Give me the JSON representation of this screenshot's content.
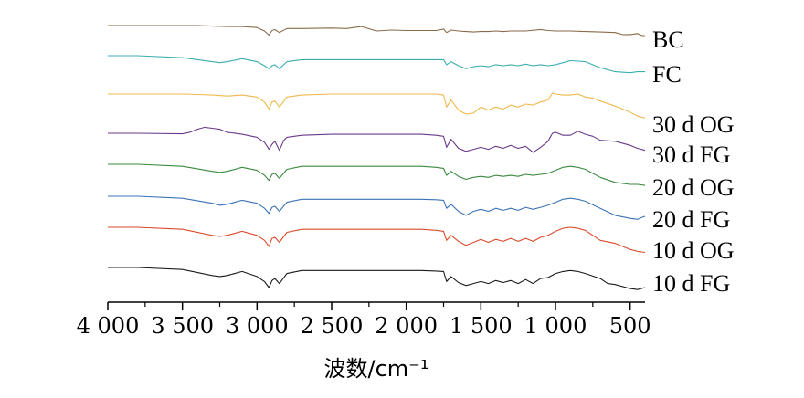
{
  "chart_data": {
    "type": "line",
    "title": "",
    "xlabel": "波数/cm⁻¹",
    "ylabel": "",
    "xlim": [
      4000,
      400
    ],
    "x_reversed": true,
    "x_ticks": [
      4000,
      3500,
      3000,
      2500,
      2000,
      1500,
      1000,
      500
    ],
    "x_tick_labels": [
      "4 000",
      "3 500",
      "3 000",
      "2 500",
      "2 000",
      "1 500",
      "1 000",
      "500"
    ],
    "y_axis_visible": false,
    "grid": false,
    "legend": "series labels at right end of each curve",
    "series": [
      {
        "name": "BC",
        "color": "#8B6A4A",
        "x": [
          4000,
          3800,
          3500,
          3400,
          3300,
          3200,
          3100,
          3000,
          2950,
          2920,
          2900,
          2880,
          2850,
          2800,
          2700,
          2500,
          2400,
          2350,
          2300,
          2200,
          2100,
          2000,
          1900,
          1800,
          1750,
          1730,
          1700,
          1650,
          1600,
          1550,
          1500,
          1450,
          1400,
          1350,
          1300,
          1200,
          1100,
          1050,
          1000,
          900,
          800,
          700,
          600,
          550,
          500,
          450,
          420,
          400
        ],
        "y": [
          0.0,
          0.0,
          0.0,
          0.0,
          -0.05,
          -0.1,
          -0.1,
          -0.2,
          -0.55,
          -0.95,
          -0.5,
          -0.4,
          -0.7,
          -0.3,
          -0.3,
          -0.25,
          -0.3,
          -0.2,
          -0.1,
          -0.55,
          -0.45,
          -0.5,
          -0.5,
          -0.5,
          -0.35,
          -0.7,
          -0.45,
          -0.55,
          -0.6,
          -0.65,
          -0.6,
          -0.6,
          -0.55,
          -0.6,
          -0.55,
          -0.55,
          -0.4,
          -0.5,
          -0.55,
          -0.55,
          -0.6,
          -0.65,
          -0.7,
          -0.9,
          -0.9,
          -0.8,
          -1.0,
          -1.0
        ]
      },
      {
        "name": "FC",
        "color": "#3BAEB0",
        "x": [
          4000,
          3800,
          3500,
          3300,
          3250,
          3200,
          3100,
          3000,
          2950,
          2920,
          2900,
          2880,
          2850,
          2800,
          2700,
          2500,
          2300,
          2100,
          1900,
          1800,
          1750,
          1730,
          1700,
          1650,
          1600,
          1550,
          1500,
          1450,
          1400,
          1350,
          1300,
          1250,
          1200,
          1150,
          1100,
          1050,
          1000,
          950,
          900,
          850,
          800,
          700,
          600,
          500,
          450,
          400
        ],
        "y": [
          0.0,
          0.0,
          -0.2,
          -0.6,
          -0.7,
          -0.6,
          -0.3,
          -0.6,
          -1.0,
          -1.3,
          -1.0,
          -0.9,
          -1.3,
          -0.6,
          -0.4,
          -0.4,
          -0.4,
          -0.4,
          -0.4,
          -0.4,
          -0.4,
          -0.9,
          -0.6,
          -1.0,
          -1.3,
          -1.1,
          -1.0,
          -1.1,
          -0.9,
          -1.0,
          -0.9,
          -1.0,
          -0.85,
          -1.0,
          -0.9,
          -1.0,
          -0.9,
          -0.7,
          -0.5,
          -0.55,
          -0.6,
          -1.2,
          -1.6,
          -1.7,
          -1.6,
          -1.6
        ]
      },
      {
        "name": "30 d OG",
        "color": "#F0B84C",
        "x": [
          4000,
          3800,
          3500,
          3400,
          3300,
          3200,
          3100,
          3000,
          2950,
          2920,
          2900,
          2880,
          2850,
          2800,
          2700,
          2500,
          2300,
          2100,
          1900,
          1800,
          1750,
          1730,
          1700,
          1650,
          1600,
          1550,
          1500,
          1450,
          1400,
          1350,
          1300,
          1250,
          1200,
          1150,
          1100,
          1050,
          1020,
          1000,
          950,
          900,
          850,
          800,
          750,
          700,
          600,
          500,
          450,
          400
        ],
        "y": [
          0.0,
          0.0,
          0.0,
          -0.05,
          -0.1,
          -0.2,
          -0.1,
          -0.3,
          -0.8,
          -1.5,
          -0.8,
          -0.7,
          -1.3,
          -0.3,
          -0.1,
          0.0,
          0.0,
          0.0,
          0.0,
          0.0,
          -0.1,
          -1.3,
          -0.6,
          -1.6,
          -2.0,
          -1.9,
          -1.3,
          -1.6,
          -1.3,
          -1.5,
          -1.1,
          -1.3,
          -1.0,
          -1.1,
          -0.8,
          -0.6,
          0.1,
          0.0,
          -0.1,
          -0.1,
          0.0,
          -0.3,
          -0.4,
          -0.7,
          -1.2,
          -1.8,
          -2.2,
          -2.4
        ]
      },
      {
        "name": "30 d FG",
        "color": "#6A3A8A",
        "x": [
          4000,
          3800,
          3500,
          3450,
          3400,
          3350,
          3300,
          3250,
          3200,
          3100,
          3000,
          2950,
          2920,
          2900,
          2880,
          2850,
          2820,
          2800,
          2700,
          2500,
          2300,
          2100,
          1900,
          1800,
          1750,
          1730,
          1700,
          1650,
          1600,
          1550,
          1500,
          1450,
          1400,
          1350,
          1300,
          1250,
          1200,
          1150,
          1100,
          1050,
          1020,
          1000,
          950,
          900,
          850,
          800,
          750,
          700,
          600,
          500,
          450,
          400
        ],
        "y": [
          0.0,
          0.0,
          -0.05,
          0.1,
          0.4,
          0.6,
          0.5,
          0.4,
          0.1,
          -0.1,
          -0.4,
          -0.9,
          -1.6,
          -1.1,
          -0.8,
          -1.7,
          -0.7,
          -0.4,
          -0.2,
          -0.1,
          -0.1,
          -0.1,
          -0.1,
          -0.2,
          -0.3,
          -1.4,
          -0.6,
          -1.5,
          -1.8,
          -1.6,
          -1.4,
          -1.6,
          -1.3,
          -1.5,
          -1.2,
          -1.5,
          -1.3,
          -1.9,
          -1.4,
          -0.8,
          0.0,
          0.1,
          -0.2,
          -0.2,
          0.2,
          -0.1,
          -0.3,
          -0.7,
          -0.8,
          -1.2,
          -1.5,
          -1.7
        ]
      },
      {
        "name": "20 d OG",
        "color": "#3A8A3E",
        "x": [
          4000,
          3800,
          3500,
          3300,
          3250,
          3200,
          3100,
          3000,
          2950,
          2920,
          2900,
          2880,
          2850,
          2800,
          2700,
          2500,
          2300,
          2100,
          1900,
          1800,
          1750,
          1730,
          1700,
          1650,
          1600,
          1550,
          1500,
          1450,
          1400,
          1350,
          1300,
          1250,
          1200,
          1150,
          1100,
          1050,
          1000,
          950,
          900,
          850,
          800,
          700,
          600,
          500,
          450,
          400
        ],
        "y": [
          0.0,
          0.0,
          -0.2,
          -0.7,
          -0.8,
          -0.7,
          -0.3,
          -0.6,
          -1.1,
          -1.6,
          -1.0,
          -0.9,
          -1.4,
          -0.5,
          -0.2,
          -0.2,
          -0.2,
          -0.2,
          -0.2,
          -0.3,
          -0.4,
          -1.1,
          -0.7,
          -1.2,
          -1.5,
          -1.3,
          -1.2,
          -1.3,
          -1.1,
          -1.2,
          -1.1,
          -1.2,
          -1.0,
          -1.1,
          -1.0,
          -0.9,
          -0.6,
          -0.3,
          -0.2,
          -0.3,
          -0.5,
          -1.3,
          -1.8,
          -2.0,
          -2.0,
          -2.1
        ]
      },
      {
        "name": "20 d FG",
        "color": "#3C73B5",
        "x": [
          4000,
          3800,
          3500,
          3300,
          3250,
          3200,
          3100,
          3000,
          2950,
          2920,
          2900,
          2880,
          2850,
          2800,
          2700,
          2500,
          2300,
          2100,
          1900,
          1800,
          1750,
          1730,
          1700,
          1650,
          1600,
          1550,
          1500,
          1450,
          1400,
          1350,
          1300,
          1250,
          1200,
          1150,
          1100,
          1050,
          1000,
          950,
          900,
          850,
          800,
          700,
          600,
          500,
          450,
          420,
          400
        ],
        "y": [
          0.0,
          0.0,
          -0.2,
          -0.7,
          -0.9,
          -0.8,
          -0.4,
          -0.7,
          -1.2,
          -1.7,
          -1.1,
          -1.0,
          -1.5,
          -0.6,
          -0.3,
          -0.3,
          -0.3,
          -0.3,
          -0.3,
          -0.35,
          -0.4,
          -1.2,
          -0.8,
          -1.5,
          -1.9,
          -1.5,
          -1.3,
          -1.5,
          -1.2,
          -1.4,
          -1.2,
          -1.4,
          -1.1,
          -1.3,
          -1.1,
          -0.9,
          -0.6,
          -0.3,
          -0.2,
          -0.3,
          -0.5,
          -1.2,
          -1.9,
          -2.2,
          -2.3,
          -2.1,
          -2.0
        ]
      },
      {
        "name": "10 d OG",
        "color": "#D94A2A",
        "x": [
          4000,
          3800,
          3500,
          3300,
          3250,
          3200,
          3100,
          3000,
          2950,
          2920,
          2900,
          2880,
          2850,
          2800,
          2700,
          2500,
          2300,
          2100,
          1900,
          1800,
          1750,
          1730,
          1700,
          1650,
          1600,
          1550,
          1500,
          1450,
          1400,
          1350,
          1300,
          1250,
          1200,
          1150,
          1100,
          1050,
          1000,
          950,
          900,
          850,
          800,
          700,
          600,
          500,
          450,
          400
        ],
        "y": [
          0.0,
          0.0,
          -0.2,
          -0.8,
          -0.9,
          -0.8,
          -0.4,
          -0.8,
          -1.3,
          -1.9,
          -1.1,
          -1.0,
          -1.5,
          -0.5,
          -0.2,
          -0.2,
          -0.2,
          -0.2,
          -0.2,
          -0.3,
          -0.4,
          -1.3,
          -0.8,
          -1.4,
          -1.8,
          -1.5,
          -1.2,
          -1.5,
          -1.2,
          -1.4,
          -1.1,
          -1.4,
          -1.1,
          -1.4,
          -1.0,
          -0.8,
          -0.4,
          -0.1,
          0.0,
          -0.1,
          -0.3,
          -1.3,
          -1.6,
          -2.2,
          -2.4,
          -2.5
        ]
      },
      {
        "name": "10 d FG",
        "color": "#1A1A1A",
        "x": [
          4000,
          3800,
          3500,
          3300,
          3250,
          3200,
          3100,
          3000,
          2950,
          2920,
          2900,
          2880,
          2850,
          2800,
          2700,
          2500,
          2300,
          2100,
          1900,
          1800,
          1750,
          1730,
          1700,
          1650,
          1600,
          1550,
          1500,
          1450,
          1400,
          1350,
          1300,
          1250,
          1200,
          1150,
          1100,
          1050,
          1000,
          950,
          900,
          850,
          800,
          700,
          650,
          600,
          500,
          450,
          400
        ],
        "y": [
          0.0,
          0.0,
          -0.2,
          -0.8,
          -0.9,
          -0.8,
          -0.4,
          -0.9,
          -1.4,
          -2.0,
          -1.3,
          -1.1,
          -1.6,
          -0.6,
          -0.3,
          -0.3,
          -0.3,
          -0.3,
          -0.3,
          -0.35,
          -0.4,
          -1.4,
          -0.9,
          -1.5,
          -1.8,
          -1.6,
          -1.4,
          -1.6,
          -1.3,
          -1.5,
          -1.3,
          -1.6,
          -1.2,
          -1.6,
          -1.1,
          -1.0,
          -0.6,
          -0.4,
          -0.3,
          -0.4,
          -0.6,
          -1.1,
          -1.6,
          -1.7,
          -2.1,
          -2.2,
          -2.0
        ]
      }
    ]
  }
}
